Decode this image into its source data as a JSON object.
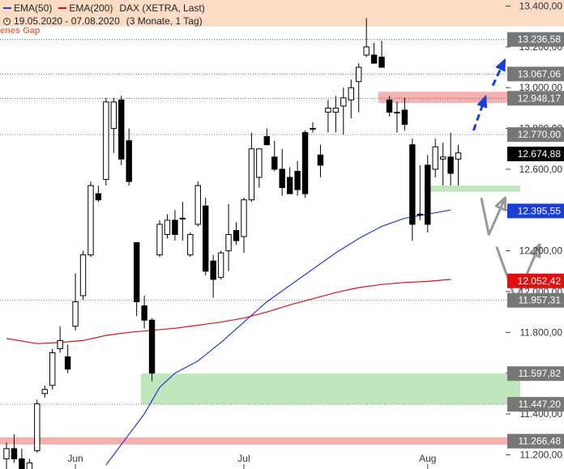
{
  "legend": {
    "ema50_label": "EMA(50)",
    "ema200_label": "EMA(200)",
    "instrument": "DAX (XETRA, Last)",
    "range": "19.05.2020 - 07.08.2020",
    "period": "(3 Monate, 1 Tag)",
    "ema50_color": "#1a3fd6",
    "ema200_color": "#e01010"
  },
  "gap_label": "enes Gap",
  "chart_data": {
    "type": "candlestick",
    "ylim": [
      11130,
      13430
    ],
    "yticks": [
      11200,
      11400,
      11600,
      11800,
      12000,
      12200,
      12400,
      12600,
      12800,
      13000,
      13200,
      13400
    ],
    "ytick_labels": [
      "11.200,00",
      "11.400,00",
      "11.600,00",
      "11.800,00",
      "12.000,00",
      "12.200,00",
      "12.400,00",
      "12.600,00",
      "12.800,00",
      "13.000,00",
      "13.200,00",
      "13.400,00"
    ],
    "xtick_labels": [
      {
        "label": "Jun",
        "index": 9
      },
      {
        "label": "Jul",
        "index": 31
      },
      {
        "label": "Aug",
        "index": 55
      }
    ],
    "candles": [
      {
        "o": 11180,
        "h": 11260,
        "l": 11120,
        "c": 11230
      },
      {
        "o": 11230,
        "h": 11300,
        "l": 11160,
        "c": 11180
      },
      {
        "o": 11180,
        "h": 11230,
        "l": 11100,
        "c": 11120
      },
      {
        "o": 11120,
        "h": 11180,
        "l": 11080,
        "c": 11160
      },
      {
        "o": 11220,
        "h": 11470,
        "l": 11210,
        "c": 11450
      },
      {
        "o": 11500,
        "h": 11540,
        "l": 11480,
        "c": 11520
      },
      {
        "o": 11540,
        "h": 11720,
        "l": 11520,
        "c": 11700
      },
      {
        "o": 11720,
        "h": 11830,
        "l": 11700,
        "c": 11760
      },
      {
        "o": 11680,
        "h": 11740,
        "l": 11600,
        "c": 11620
      },
      {
        "o": 11830,
        "h": 12090,
        "l": 11810,
        "c": 11950
      },
      {
        "o": 11980,
        "h": 12200,
        "l": 11960,
        "c": 12180
      },
      {
        "o": 12180,
        "h": 12540,
        "l": 12170,
        "c": 12520
      },
      {
        "o": 12480,
        "h": 12520,
        "l": 12440,
        "c": 12450
      },
      {
        "o": 12550,
        "h": 12950,
        "l": 12520,
        "c": 12930
      },
      {
        "o": 12800,
        "h": 12950,
        "l": 12680,
        "c": 12930
      },
      {
        "o": 12940,
        "h": 12960,
        "l": 12620,
        "c": 12650
      },
      {
        "o": 12740,
        "h": 12800,
        "l": 12520,
        "c": 12540
      },
      {
        "o": 12240,
        "h": 12240,
        "l": 11880,
        "c": 11950
      },
      {
        "o": 11930,
        "h": 11980,
        "l": 11820,
        "c": 11860
      },
      {
        "o": 11860,
        "h": 11870,
        "l": 11560,
        "c": 11600
      },
      {
        "o": 12180,
        "h": 12350,
        "l": 12170,
        "c": 12330
      },
      {
        "o": 12280,
        "h": 12380,
        "l": 12260,
        "c": 12350
      },
      {
        "o": 12350,
        "h": 12400,
        "l": 12250,
        "c": 12280
      },
      {
        "o": 12360,
        "h": 12440,
        "l": 12250,
        "c": 12360
      },
      {
        "o": 12180,
        "h": 12290,
        "l": 12170,
        "c": 12280
      },
      {
        "o": 12330,
        "h": 12540,
        "l": 12320,
        "c": 12520
      },
      {
        "o": 12420,
        "h": 12460,
        "l": 12080,
        "c": 12100
      },
      {
        "o": 12150,
        "h": 12180,
        "l": 11970,
        "c": 12060
      },
      {
        "o": 12070,
        "h": 12200,
        "l": 12060,
        "c": 12190
      },
      {
        "o": 12200,
        "h": 12430,
        "l": 12100,
        "c": 12280
      },
      {
        "o": 12300,
        "h": 12340,
        "l": 12230,
        "c": 12250
      },
      {
        "o": 12270,
        "h": 12460,
        "l": 12190,
        "c": 12450
      },
      {
        "o": 12450,
        "h": 12780,
        "l": 12440,
        "c": 12700
      },
      {
        "o": 12560,
        "h": 12700,
        "l": 12510,
        "c": 12700
      },
      {
        "o": 12760,
        "h": 12800,
        "l": 12720,
        "c": 12720
      },
      {
        "o": 12660,
        "h": 12740,
        "l": 12590,
        "c": 12600
      },
      {
        "o": 12600,
        "h": 12700,
        "l": 12470,
        "c": 12510
      },
      {
        "o": 12560,
        "h": 12610,
        "l": 12480,
        "c": 12480
      },
      {
        "o": 12590,
        "h": 12640,
        "l": 12470,
        "c": 12500
      },
      {
        "o": 12780,
        "h": 12790,
        "l": 12460,
        "c": 12480
      },
      {
        "o": 12800,
        "h": 12830,
        "l": 12780,
        "c": 12800
      },
      {
        "o": 12670,
        "h": 12720,
        "l": 12560,
        "c": 12620
      },
      {
        "o": 12880,
        "h": 12940,
        "l": 12780,
        "c": 12900
      },
      {
        "o": 12880,
        "h": 12960,
        "l": 12780,
        "c": 12900
      },
      {
        "o": 12910,
        "h": 13000,
        "l": 12770,
        "c": 12950
      },
      {
        "o": 12940,
        "h": 13040,
        "l": 12850,
        "c": 13000
      },
      {
        "o": 13030,
        "h": 13120,
        "l": 12880,
        "c": 13100
      },
      {
        "o": 13160,
        "h": 13340,
        "l": 13150,
        "c": 13200
      },
      {
        "o": 13160,
        "h": 13220,
        "l": 13120,
        "c": 13120
      },
      {
        "o": 13150,
        "h": 13230,
        "l": 13100,
        "c": 13100
      },
      {
        "o": 12940,
        "h": 12960,
        "l": 12860,
        "c": 12880
      },
      {
        "o": 12880,
        "h": 12930,
        "l": 12780,
        "c": 12880
      },
      {
        "o": 12890,
        "h": 12950,
        "l": 12790,
        "c": 12820
      },
      {
        "o": 12720,
        "h": 12750,
        "l": 12250,
        "c": 12330
      },
      {
        "o": 12380,
        "h": 12620,
        "l": 12350,
        "c": 12380
      },
      {
        "o": 12620,
        "h": 12670,
        "l": 12290,
        "c": 12330
      },
      {
        "o": 12600,
        "h": 12750,
        "l": 12560,
        "c": 12710
      },
      {
        "o": 12650,
        "h": 12730,
        "l": 12520,
        "c": 12660
      },
      {
        "o": 12660,
        "h": 12780,
        "l": 12520,
        "c": 12580
      },
      {
        "o": 12650,
        "h": 12720,
        "l": 12520,
        "c": 12680
      }
    ],
    "series": [
      {
        "name": "EMA(50)",
        "color": "#1a3fd6",
        "values": [
          [
            13,
            11150
          ],
          [
            16,
            11300
          ],
          [
            18,
            11400
          ],
          [
            20,
            11530
          ],
          [
            22,
            11600
          ],
          [
            25,
            11660
          ],
          [
            28,
            11750
          ],
          [
            31,
            11850
          ],
          [
            34,
            11950
          ],
          [
            37,
            12030
          ],
          [
            40,
            12110
          ],
          [
            43,
            12190
          ],
          [
            46,
            12260
          ],
          [
            49,
            12320
          ],
          [
            52,
            12360
          ],
          [
            55,
            12380
          ],
          [
            58,
            12400
          ]
        ]
      },
      {
        "name": "EMA(200)",
        "color": "#e01010",
        "values": [
          [
            0,
            11770
          ],
          [
            4,
            11745
          ],
          [
            7,
            11750
          ],
          [
            10,
            11760
          ],
          [
            13,
            11785
          ],
          [
            16,
            11800
          ],
          [
            19,
            11810
          ],
          [
            22,
            11820
          ],
          [
            25,
            11835
          ],
          [
            28,
            11850
          ],
          [
            31,
            11870
          ],
          [
            34,
            11900
          ],
          [
            37,
            11935
          ],
          [
            40,
            11965
          ],
          [
            43,
            11995
          ],
          [
            46,
            12020
          ],
          [
            49,
            12035
          ],
          [
            52,
            12045
          ],
          [
            55,
            12050
          ],
          [
            58,
            12060
          ]
        ]
      }
    ],
    "hlines": [
      13236.58,
      13067.06,
      12948.17,
      12770.0,
      11957.31,
      11447.2
    ],
    "zones": [
      {
        "from": 12925,
        "to": 12980,
        "color": "#f7b0b0",
        "x0": 49
      },
      {
        "from": 12490,
        "to": 12520,
        "color": "#bfe6bd",
        "x0": 55
      },
      {
        "from": 11447.2,
        "to": 11597.82,
        "color": "#bfe6bd",
        "x0": 18
      },
      {
        "from": 11250,
        "to": 11285,
        "color": "#f7b0b0",
        "x0": 0
      },
      {
        "from": 13300,
        "to": 13430,
        "color": "#fcdcc4",
        "x0": 0
      }
    ],
    "price_labels": [
      {
        "value": 13236.58,
        "text": "13.236,58",
        "bg": "#777777"
      },
      {
        "value": 13067.06,
        "text": "13.067,06",
        "bg": "#777777"
      },
      {
        "value": 12948.17,
        "text": "12.948,17",
        "bg": "#777777"
      },
      {
        "value": 12770.0,
        "text": "12.770,00",
        "bg": "#777777"
      },
      {
        "value": 12674.88,
        "text": "12.674,88",
        "bg": "#000000"
      },
      {
        "value": 12395.55,
        "text": "12.395,55",
        "bg": "#1a3fd6"
      },
      {
        "value": 12052.42,
        "text": "12.052,42",
        "bg": "#e01010"
      },
      {
        "value": 11957.31,
        "text": "11.957,31",
        "bg": "#777777"
      },
      {
        "value": 11597.82,
        "text": "11.597,82",
        "bg": "#777777"
      },
      {
        "value": 11447.2,
        "text": "11.447,20",
        "bg": "#777777"
      },
      {
        "value": 11266.48,
        "text": "11.266,48",
        "bg": "#777777"
      }
    ],
    "arrows": [
      {
        "color": "#1a3fd6",
        "dashed": true,
        "points": [
          [
            61,
            12790
          ],
          [
            62.5,
            12950
          ]
        ]
      },
      {
        "color": "#1a3fd6",
        "dashed": true,
        "points": [
          [
            63.5,
            13010
          ],
          [
            65,
            13130
          ]
        ]
      },
      {
        "color": "#999999",
        "dashed": false,
        "points": [
          [
            62,
            12460
          ],
          [
            63,
            12280
          ],
          [
            65,
            12450
          ]
        ]
      },
      {
        "color": "#999999",
        "dashed": false,
        "points": [
          [
            64,
            12220
          ],
          [
            66.5,
            11960
          ],
          [
            69.5,
            12220
          ]
        ]
      }
    ]
  }
}
